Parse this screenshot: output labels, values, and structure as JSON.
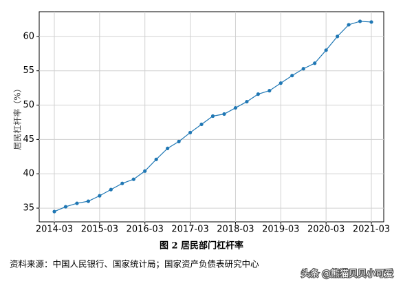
{
  "chart_data": {
    "type": "line",
    "y_label": "居民杠杆率（%）",
    "categories": [
      "2014-03",
      null,
      null,
      null,
      "2015-03",
      null,
      null,
      null,
      "2016-03",
      null,
      null,
      null,
      "2017-03",
      null,
      null,
      null,
      "2018-03",
      null,
      null,
      null,
      "2019-03",
      null,
      null,
      null,
      "2020-03",
      null,
      null,
      null,
      "2021-03"
    ],
    "series": [
      {
        "color": "#1f77b4",
        "values": [
          34.5,
          35.2,
          35.7,
          36.0,
          36.8,
          37.7,
          38.6,
          39.2,
          40.4,
          42.1,
          43.7,
          44.7,
          46.0,
          47.2,
          48.4,
          48.7,
          49.6,
          50.5,
          51.6,
          52.1,
          53.2,
          54.3,
          55.3,
          56.1,
          58.0,
          60.0,
          61.7,
          62.2,
          62.1
        ]
      }
    ],
    "ylim": [
      33.0,
      63.6
    ],
    "yticks": [
      35,
      40,
      45,
      50,
      55,
      60
    ],
    "grid": true
  },
  "caption": "图 2  居民部门杠杆率",
  "source": "资料来源：中国人民银行、国家统计局；国家资产负债表研究中心",
  "watermark": "头条 @熊猫贝贝小可爱"
}
